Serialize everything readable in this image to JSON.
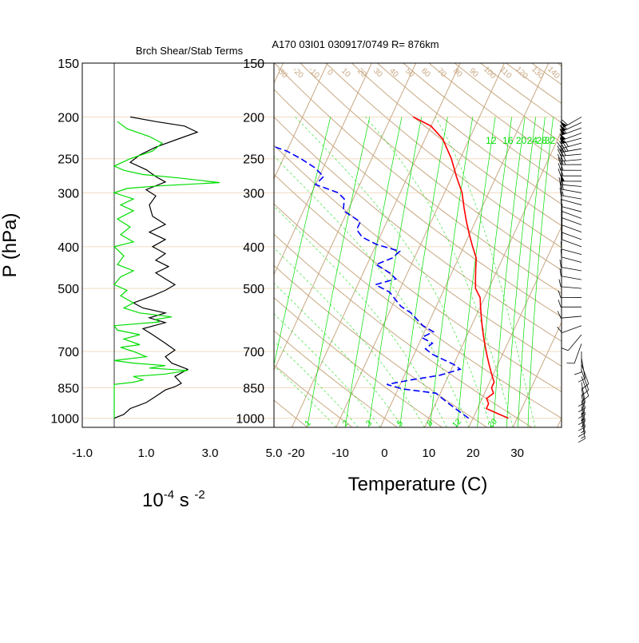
{
  "colors": {
    "background": "#ffffff",
    "frame": "#000000",
    "isobar": "#f0dcc0",
    "isotherm": "#c8a882",
    "mixing_ratio": "#00dd00",
    "temperature": "#ff0000",
    "dewpoint": "#0000ff",
    "shear": "#000000",
    "stability": "#00dd00"
  },
  "chart_data": [
    {
      "type": "line",
      "title": "Brch Shear/Stab Terms",
      "ylabel": "P (hPa)",
      "xlabel_base": "10",
      "xlabel_exp1": "-4",
      "xlabel_mid": " s ",
      "xlabel_exp2": "-2",
      "xlim": [
        -1.0,
        5.0
      ],
      "x_ticks": [
        "-1.0",
        "1.0",
        "3.0",
        "5.0"
      ],
      "x_tick_values": [
        -1.0,
        1.0,
        3.0,
        5.0
      ],
      "ylim": [
        1050,
        150
      ],
      "y_scale": "log",
      "y_ticks": [
        150,
        200,
        250,
        300,
        400,
        500,
        700,
        850,
        1000
      ],
      "zero_line": 0.0,
      "series": [
        {
          "key": "shear",
          "values": [
            [
              0.0,
              1000
            ],
            [
              0.3,
              980
            ],
            [
              0.5,
              950
            ],
            [
              1.0,
              920
            ],
            [
              1.3,
              890
            ],
            [
              1.6,
              860
            ],
            [
              1.9,
              845
            ],
            [
              2.1,
              830
            ],
            [
              1.9,
              800
            ],
            [
              2.3,
              770
            ],
            [
              1.8,
              745
            ],
            [
              1.6,
              720
            ],
            [
              1.9,
              695
            ],
            [
              1.6,
              670
            ],
            [
              1.2,
              640
            ],
            [
              0.9,
              620
            ],
            [
              1.6,
              600
            ],
            [
              1.1,
              585
            ],
            [
              1.6,
              570
            ],
            [
              0.9,
              555
            ],
            [
              0.6,
              540
            ],
            [
              1.2,
              520
            ],
            [
              1.6,
              505
            ],
            [
              1.9,
              490
            ],
            [
              1.6,
              475
            ],
            [
              1.3,
              460
            ],
            [
              1.7,
              445
            ],
            [
              1.3,
              430
            ],
            [
              1.6,
              415
            ],
            [
              1.2,
              400
            ],
            [
              1.6,
              385
            ],
            [
              1.1,
              370
            ],
            [
              1.6,
              355
            ],
            [
              1.2,
              340
            ],
            [
              1.1,
              320
            ],
            [
              1.3,
              305
            ],
            [
              1.0,
              295
            ],
            [
              1.6,
              283
            ],
            [
              1.3,
              275
            ],
            [
              1.0,
              265
            ],
            [
              0.5,
              255
            ],
            [
              0.8,
              245
            ],
            [
              1.3,
              235
            ],
            [
              2.0,
              225
            ],
            [
              2.6,
              217
            ],
            [
              2.2,
              210
            ],
            [
              1.3,
              205
            ],
            [
              0.5,
              200
            ]
          ]
        },
        {
          "key": "stability",
          "values": [
            [
              0.0,
              1000
            ],
            [
              0.0,
              950
            ],
            [
              0.0,
              900
            ],
            [
              0.0,
              860
            ],
            [
              0.0,
              835
            ],
            [
              0.6,
              825
            ],
            [
              0.9,
              815
            ],
            [
              0.6,
              800
            ],
            [
              1.6,
              790
            ],
            [
              2.3,
              775
            ],
            [
              1.1,
              765
            ],
            [
              1.6,
              755
            ],
            [
              0.6,
              745
            ],
            [
              0.0,
              735
            ],
            [
              1.0,
              720
            ],
            [
              0.6,
              700
            ],
            [
              0.2,
              685
            ],
            [
              0.8,
              675
            ],
            [
              0.3,
              655
            ],
            [
              0.8,
              640
            ],
            [
              0.1,
              625
            ],
            [
              0.0,
              610
            ],
            [
              1.4,
              598
            ],
            [
              1.3,
              590
            ],
            [
              1.8,
              582
            ],
            [
              0.8,
              570
            ],
            [
              0.3,
              555
            ],
            [
              0.6,
              540
            ],
            [
              0.2,
              520
            ],
            [
              0.4,
              505
            ],
            [
              0.0,
              490
            ],
            [
              0.2,
              470
            ],
            [
              0.6,
              455
            ],
            [
              0.1,
              440
            ],
            [
              0.3,
              420
            ],
            [
              0.0,
              400
            ],
            [
              0.6,
              390
            ],
            [
              0.2,
              375
            ],
            [
              0.5,
              360
            ],
            [
              0.1,
              345
            ],
            [
              0.6,
              330
            ],
            [
              0.2,
              320
            ],
            [
              0.6,
              310
            ],
            [
              0.0,
              300
            ],
            [
              0.4,
              293
            ],
            [
              1.4,
              289
            ],
            [
              3.3,
              284
            ],
            [
              2.0,
              277
            ],
            [
              0.9,
              272
            ],
            [
              0.3,
              266
            ],
            [
              0.0,
              260
            ],
            [
              0.5,
              250
            ],
            [
              1.2,
              240
            ],
            [
              1.5,
              230
            ],
            [
              1.1,
              222
            ],
            [
              0.4,
              213
            ],
            [
              0.1,
              205
            ]
          ]
        }
      ]
    },
    {
      "type": "line",
      "title": "A170 03I01 030917/0749 R= 876km",
      "xlabel": "Temperature (C)",
      "xlim": [
        -25,
        40
      ],
      "x_ticks": [
        "-20",
        "-10",
        "0",
        "10",
        "20",
        "30"
      ],
      "x_tick_values": [
        -20,
        -10,
        0,
        10,
        20,
        30
      ],
      "ylim": [
        1050,
        150
      ],
      "y_scale": "log",
      "y_ticks": [
        150,
        200,
        250,
        300,
        400,
        500,
        700,
        850,
        1000
      ],
      "skew_deg_per_decade": 45,
      "isotherm_labels": [
        "-30",
        "-20",
        "-10",
        "0",
        "10",
        "20",
        "30",
        "40",
        "50",
        "60",
        "70",
        "80",
        "90",
        "100",
        "110",
        "120",
        "130",
        "140",
        "150"
      ],
      "isotherm_label_values": [
        -30,
        -20,
        -10,
        0,
        10,
        20,
        30,
        40,
        50,
        60,
        70,
        80,
        90,
        100,
        110,
        120,
        130,
        140,
        150
      ],
      "mixing_ratio_top_labels": [
        "12",
        "16",
        "20",
        "24",
        "28",
        "32"
      ],
      "mixing_ratio_top_values": [
        12,
        16,
        20,
        24,
        28,
        32
      ],
      "mixing_ratio_bottom_labels": [
        "1",
        "2",
        "3",
        "5",
        "8",
        "12",
        "20"
      ],
      "mixing_ratio_bottom_values": [
        1,
        2,
        3,
        5,
        8,
        12,
        20
      ],
      "series": [
        {
          "key": "temperature",
          "values": [
            [
              28,
              1000
            ],
            [
              25,
              975
            ],
            [
              22,
              950
            ],
            [
              22,
              925
            ],
            [
              21,
              900
            ],
            [
              22,
              875
            ],
            [
              21,
              850
            ],
            [
              21,
              825
            ],
            [
              20,
              800
            ],
            [
              19,
              775
            ],
            [
              18,
              750
            ],
            [
              17,
              725
            ],
            [
              16,
              700
            ],
            [
              15,
              675
            ],
            [
              14,
              650
            ],
            [
              13,
              625
            ],
            [
              12,
              600
            ],
            [
              11,
              575
            ],
            [
              10,
              550
            ],
            [
              9,
              525
            ],
            [
              7,
              500
            ],
            [
              6,
              475
            ],
            [
              5,
              450
            ],
            [
              4,
              425
            ],
            [
              2,
              400
            ],
            [
              0,
              375
            ],
            [
              -2,
              350
            ],
            [
              -4,
              325
            ],
            [
              -6,
              300
            ],
            [
              -9,
              275
            ],
            [
              -12,
              250
            ],
            [
              -16,
              225
            ],
            [
              -20,
              210
            ],
            [
              -25,
              200
            ]
          ]
        },
        {
          "key": "dewpoint",
          "values": [
            [
              19,
              1000
            ],
            [
              17,
              975
            ],
            [
              15,
              950
            ],
            [
              13,
              925
            ],
            [
              11,
              900
            ],
            [
              9,
              875
            ],
            [
              1,
              855
            ],
            [
              -3,
              835
            ],
            [
              2,
              815
            ],
            [
              8,
              795
            ],
            [
              12,
              770
            ],
            [
              10,
              750
            ],
            [
              7,
              730
            ],
            [
              4,
              710
            ],
            [
              2,
              690
            ],
            [
              3,
              670
            ],
            [
              0,
              650
            ],
            [
              2,
              630
            ],
            [
              -1,
              610
            ],
            [
              -3,
              590
            ],
            [
              -5,
              570
            ],
            [
              -8,
              550
            ],
            [
              -10,
              530
            ],
            [
              -12,
              510
            ],
            [
              -16,
              490
            ],
            [
              -12,
              475
            ],
            [
              -14,
              460
            ],
            [
              -18,
              440
            ],
            [
              -15,
              425
            ],
            [
              -14,
              410
            ],
            [
              -20,
              395
            ],
            [
              -24,
              380
            ],
            [
              -26,
              365
            ],
            [
              -26,
              350
            ],
            [
              -31,
              330
            ],
            [
              -32,
              310
            ],
            [
              -34,
              300
            ],
            [
              -40,
              287
            ],
            [
              -39,
              275
            ],
            [
              -42,
              262
            ],
            [
              -46,
              250
            ],
            [
              -50,
              240
            ],
            [
              -56,
              230
            ],
            [
              -62,
              220
            ],
            [
              -66,
              212
            ]
          ]
        }
      ]
    }
  ],
  "wind_barbs": {
    "pressures": [
      200,
      206,
      212,
      218,
      224,
      230,
      237,
      244,
      251,
      258,
      266,
      274,
      282,
      290,
      300,
      310,
      320,
      332,
      344,
      356,
      370,
      385,
      400,
      417,
      435,
      455,
      477,
      500,
      525,
      552,
      580,
      610,
      640,
      672,
      700,
      725,
      750,
      775,
      800,
      825,
      850,
      880,
      910,
      940,
      970,
      1000
    ],
    "speeds_kt": [
      60,
      55,
      55,
      50,
      50,
      40,
      35,
      30,
      30,
      25,
      20,
      20,
      50,
      15,
      15,
      15,
      10,
      10,
      10,
      10,
      10,
      10,
      10,
      10,
      10,
      10,
      10,
      10,
      10,
      10,
      10,
      10,
      10,
      10,
      10,
      10,
      10,
      10,
      10,
      10,
      10,
      15,
      15,
      15,
      15,
      15
    ],
    "directions_deg": [
      240,
      245,
      250,
      250,
      255,
      255,
      260,
      265,
      265,
      270,
      270,
      270,
      270,
      275,
      280,
      280,
      285,
      285,
      290,
      290,
      290,
      290,
      290,
      285,
      285,
      280,
      280,
      275,
      270,
      270,
      265,
      250,
      220,
      200,
      180,
      170,
      160,
      160,
      160,
      170,
      170,
      170,
      170,
      170,
      170,
      170
    ]
  }
}
